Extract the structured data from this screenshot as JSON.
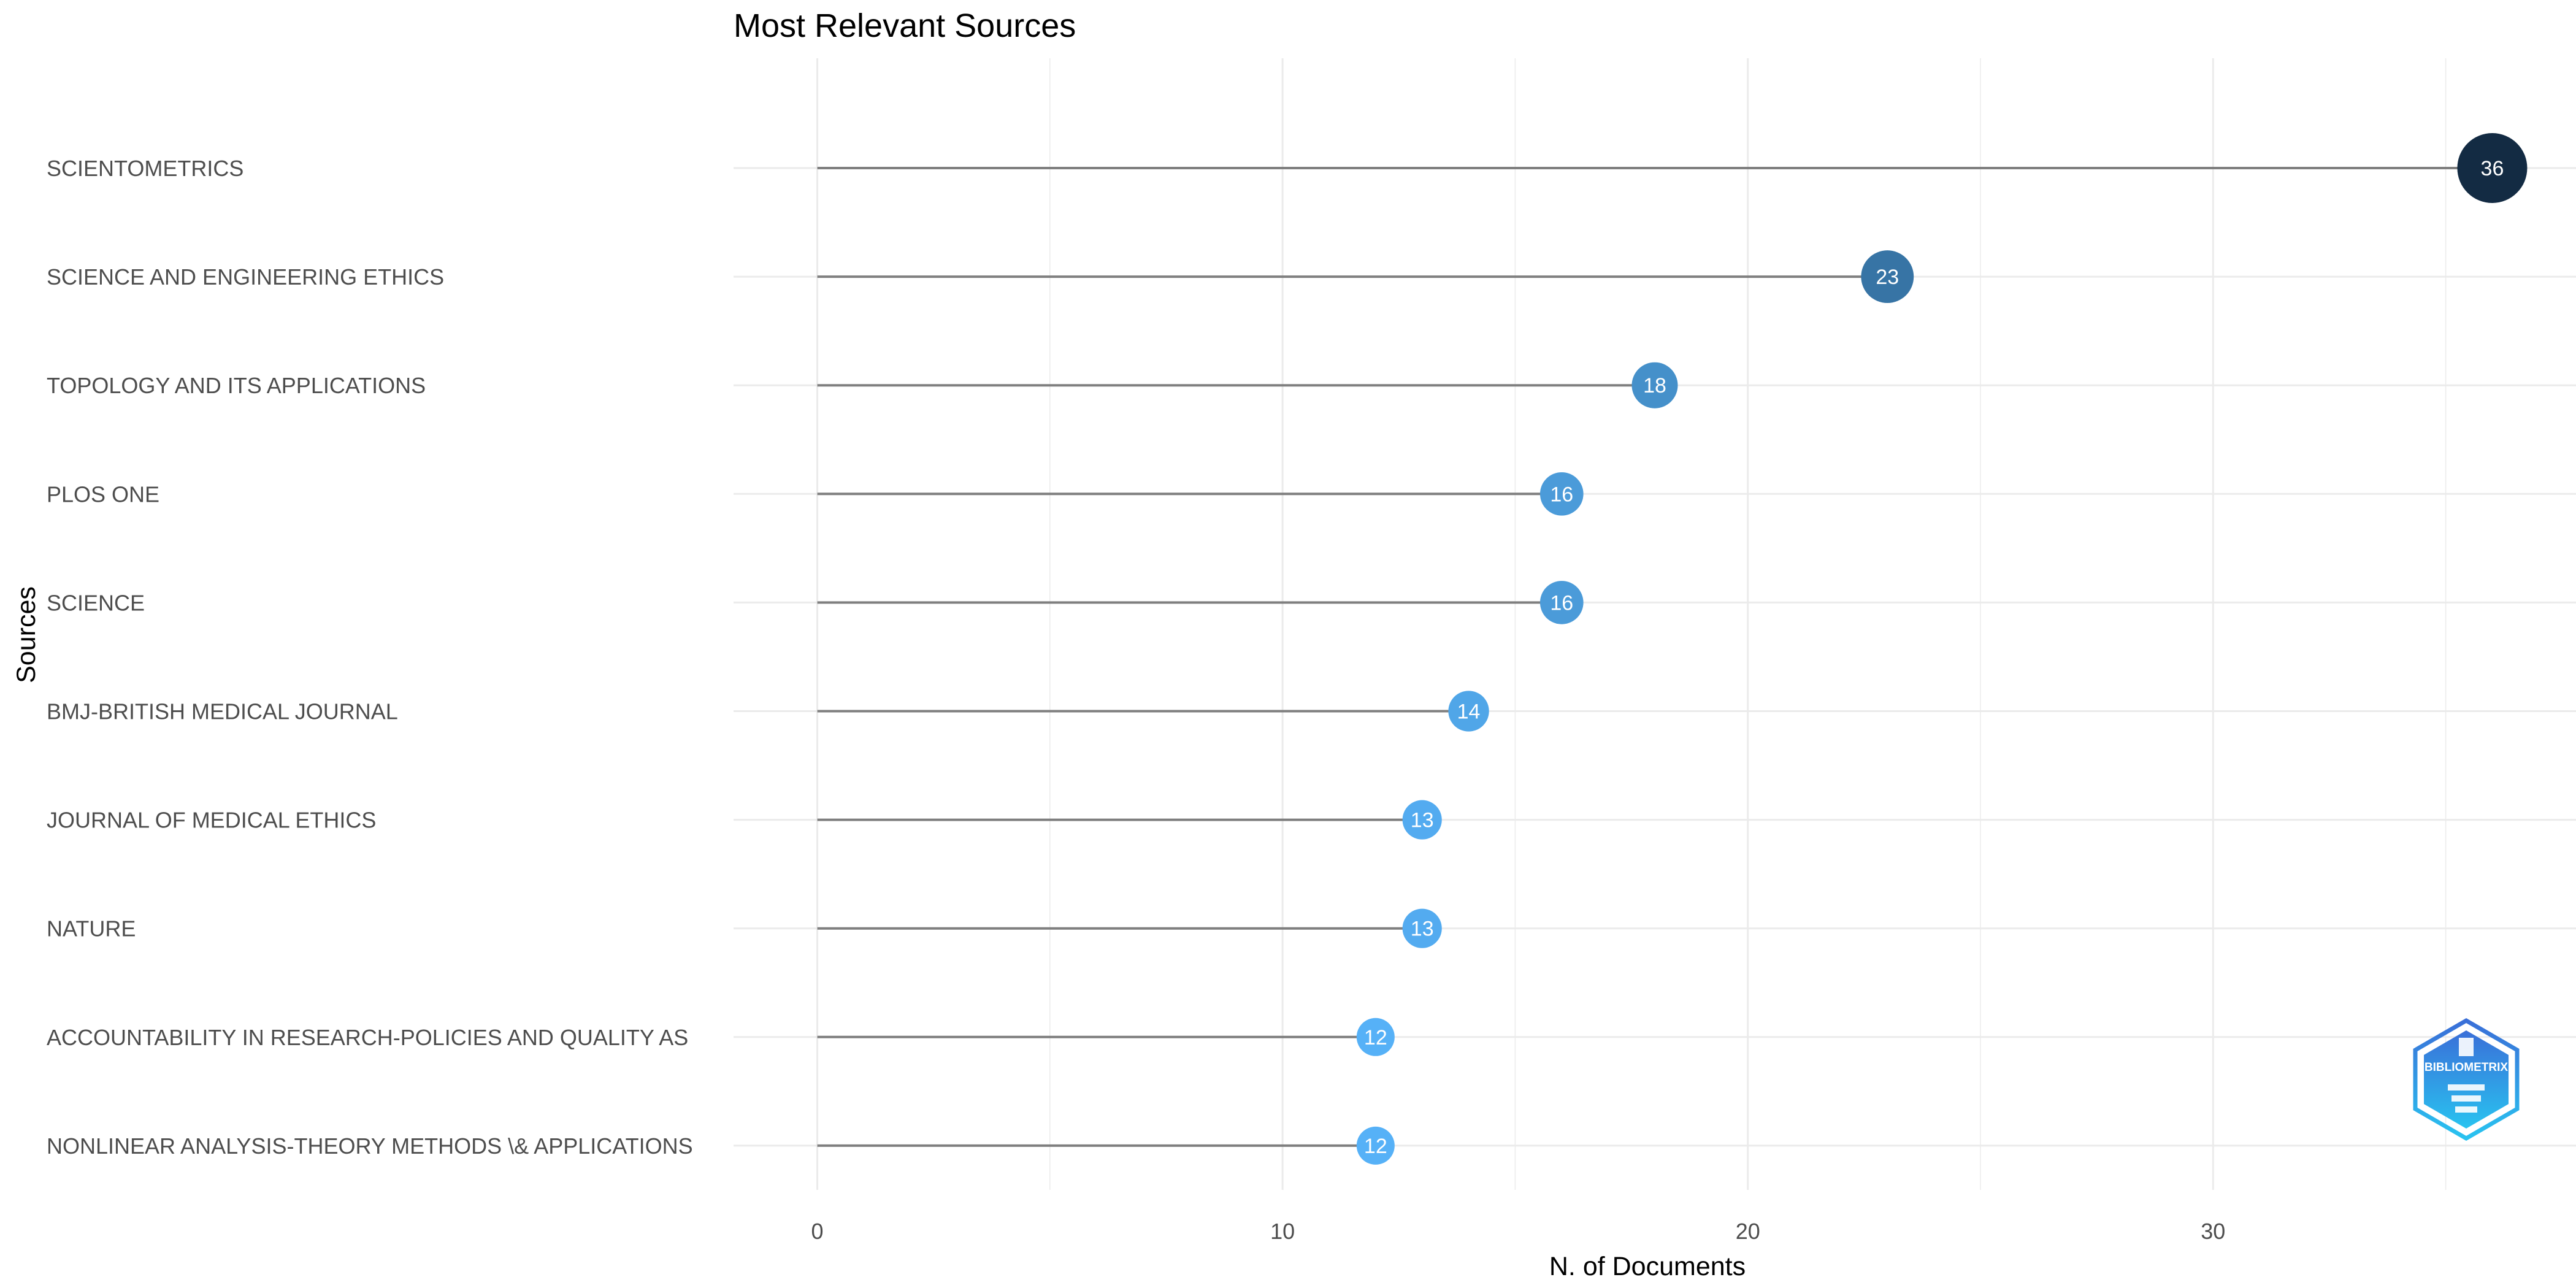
{
  "chart_data": {
    "type": "lollipop",
    "title": "Most Relevant Sources",
    "xlabel": "N. of Documents",
    "ylabel": "Sources",
    "xlim": [
      -1.8,
      37.8
    ],
    "x_ticks": [
      0,
      10,
      20,
      30
    ],
    "grid": true,
    "categories": [
      "SCIENTOMETRICS",
      "SCIENCE AND ENGINEERING ETHICS",
      "TOPOLOGY AND ITS APPLICATIONS",
      "PLOS ONE",
      "SCIENCE",
      "BMJ-BRITISH MEDICAL JOURNAL",
      "JOURNAL OF MEDICAL ETHICS",
      "NATURE",
      "ACCOUNTABILITY IN RESEARCH-POLICIES AND QUALITY AS",
      "NONLINEAR ANALYSIS-THEORY METHODS \\& APPLICATIONS"
    ],
    "values": [
      36,
      23,
      18,
      16,
      16,
      14,
      13,
      13,
      12,
      12
    ],
    "colors": {
      "low": "#56B1F7",
      "high": "#132B43",
      "stem": "#7f7f7f",
      "grid": "#ebebeb"
    },
    "logo": {
      "text": "BIBLIOMETRIX",
      "icon": "bibliometrix-hexagon-logo",
      "color_top": "#3a6fd8",
      "color_bottom": "#29c3f0"
    }
  }
}
